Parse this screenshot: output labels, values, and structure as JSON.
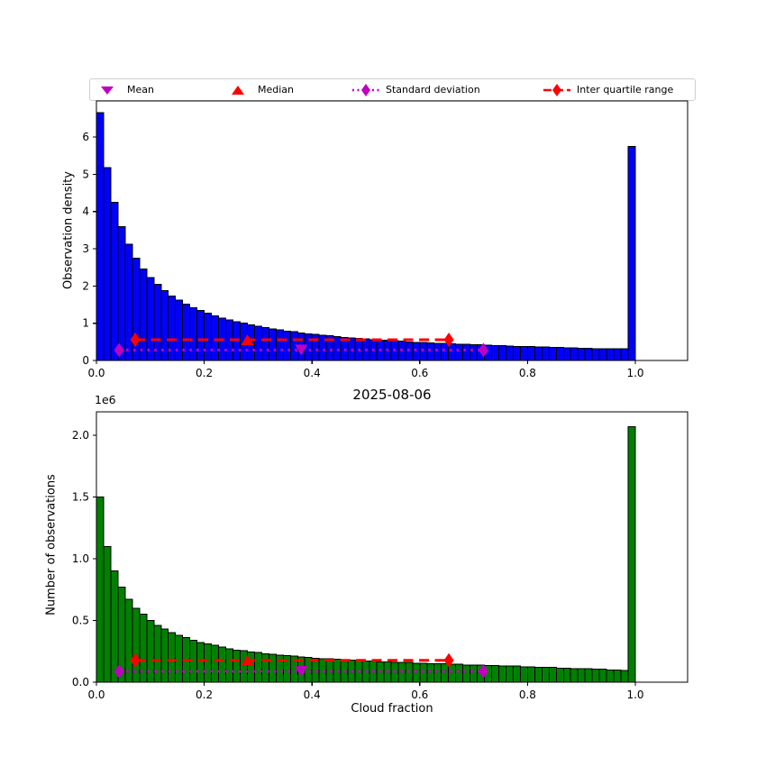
{
  "figure": {
    "title": "2025-08-06",
    "xlabel": "Cloud fraction",
    "background": "#ffffff"
  },
  "legend": {
    "items": [
      {
        "label": "Mean",
        "marker": "triangle-down",
        "color": "#bf00bf",
        "line": "none"
      },
      {
        "label": "Median",
        "marker": "triangle-up",
        "color": "#ff0000",
        "line": "none"
      },
      {
        "label": "Standard deviation",
        "marker": "diamond",
        "color": "#bf00bf",
        "line": "dotted"
      },
      {
        "label": "Inter quartile range",
        "marker": "diamond",
        "color": "#ff0000",
        "line": "dashed"
      }
    ]
  },
  "chart_data": [
    {
      "type": "bar",
      "title": "",
      "ylabel": "Observation density",
      "bar_color": "#0000ff",
      "bar_edge_color": "#000000",
      "xlim": [
        0,
        1.097
      ],
      "ylim": [
        0,
        6.97
      ],
      "xticks": [
        0,
        0.2,
        0.4,
        0.6,
        0.8,
        1.0
      ],
      "xtick_labels": [
        "0.0",
        "0.2",
        "0.4",
        "0.6",
        "0.8",
        "1.0"
      ],
      "yticks": [
        0,
        1,
        2,
        3,
        4,
        5,
        6
      ],
      "ytick_labels": [
        "0",
        "1",
        "2",
        "3",
        "4",
        "5",
        "6"
      ],
      "bin_width": 0.0133333,
      "bins_start": 0,
      "grid": false,
      "values": [
        6.65,
        5.18,
        4.25,
        3.59,
        3.12,
        2.75,
        2.46,
        2.23,
        2.04,
        1.87,
        1.73,
        1.62,
        1.51,
        1.42,
        1.34,
        1.27,
        1.2,
        1.14,
        1.09,
        1.04,
        1.0,
        0.96,
        0.92,
        0.88,
        0.85,
        0.82,
        0.79,
        0.77,
        0.74,
        0.72,
        0.7,
        0.68,
        0.66,
        0.64,
        0.62,
        0.61,
        0.59,
        0.58,
        0.56,
        0.55,
        0.54,
        0.53,
        0.52,
        0.5,
        0.49,
        0.48,
        0.47,
        0.46,
        0.46,
        0.45,
        0.44,
        0.43,
        0.42,
        0.42,
        0.41,
        0.4,
        0.4,
        0.39,
        0.38,
        0.38,
        0.37,
        0.36,
        0.36,
        0.35,
        0.35,
        0.34,
        0.34,
        0.33,
        0.33,
        0.32,
        0.32,
        0.32,
        0.31,
        0.31,
        5.75
      ],
      "stats": {
        "mean_x": 0.38,
        "median_x": 0.28,
        "std_line": {
          "x1": 0.042,
          "x2": 0.718,
          "y": 0.28,
          "color": "#bf00bf",
          "style": "dotted"
        },
        "iqr_line": {
          "x1": 0.072,
          "x2": 0.654,
          "y": 0.558,
          "color": "#ff0000",
          "style": "dashed"
        }
      }
    },
    {
      "type": "bar",
      "title": "",
      "ylabel": "Number of observations",
      "y_offset_label": "1e6",
      "y_unit": 1000000,
      "bar_color": "#008000",
      "bar_edge_color": "#000000",
      "xlim": [
        0,
        1.097
      ],
      "ylim": [
        0,
        2.19
      ],
      "xticks": [
        0,
        0.2,
        0.4,
        0.6,
        0.8,
        1.0
      ],
      "xtick_labels": [
        "0.0",
        "0.2",
        "0.4",
        "0.6",
        "0.8",
        "1.0"
      ],
      "yticks": [
        0,
        0.5,
        1.0,
        1.5,
        2.0
      ],
      "ytick_labels": [
        "0.0",
        "0.5",
        "1.0",
        "1.5",
        "2.0"
      ],
      "bin_width": 0.0133333,
      "bins_start": 0,
      "grid": false,
      "values": [
        1.5,
        1.1,
        0.9,
        0.77,
        0.67,
        0.6,
        0.55,
        0.5,
        0.46,
        0.43,
        0.4,
        0.38,
        0.36,
        0.34,
        0.32,
        0.31,
        0.3,
        0.285,
        0.27,
        0.26,
        0.255,
        0.245,
        0.24,
        0.23,
        0.225,
        0.22,
        0.215,
        0.21,
        0.205,
        0.2,
        0.195,
        0.19,
        0.19,
        0.185,
        0.18,
        0.18,
        0.175,
        0.17,
        0.17,
        0.165,
        0.165,
        0.16,
        0.16,
        0.16,
        0.155,
        0.155,
        0.15,
        0.15,
        0.15,
        0.145,
        0.145,
        0.14,
        0.14,
        0.14,
        0.135,
        0.135,
        0.13,
        0.13,
        0.13,
        0.125,
        0.125,
        0.12,
        0.12,
        0.12,
        0.115,
        0.115,
        0.11,
        0.11,
        0.11,
        0.105,
        0.105,
        0.1,
        0.1,
        0.095,
        2.07
      ],
      "stats": {
        "mean_x": 0.38,
        "median_x": 0.28,
        "std_line": {
          "x1": 0.042,
          "x2": 0.718,
          "y": 0.088,
          "color": "#bf00bf",
          "style": "dotted"
        },
        "iqr_line": {
          "x1": 0.072,
          "x2": 0.654,
          "y": 0.177,
          "color": "#ff0000",
          "style": "dashed"
        }
      }
    }
  ]
}
